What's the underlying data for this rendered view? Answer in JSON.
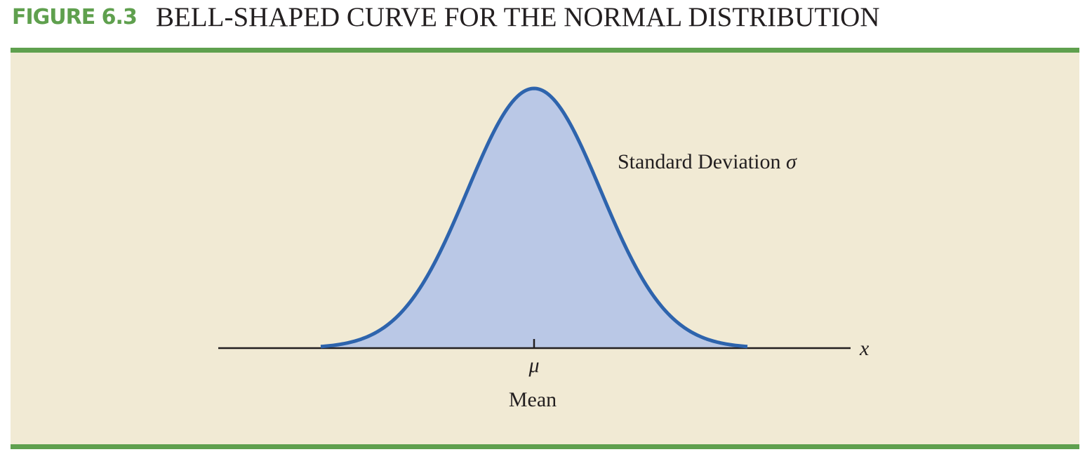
{
  "figure": {
    "label": "FIGURE 6.3",
    "title": "BELL-SHAPED CURVE FOR THE NORMAL DISTRIBUTION"
  },
  "colors": {
    "accent_green": "#5fa04e",
    "panel_background": "#f1ead4",
    "curve_stroke": "#2e64ad",
    "curve_fill": "#bac8e6",
    "axis": "#231f20"
  },
  "chart_data": {
    "type": "area",
    "distribution": "normal",
    "mean": 0,
    "std_dev": 1,
    "x_range": [
      -3.2,
      3.2
    ],
    "grid": false,
    "axis_label": "x",
    "mean_tick_label": "μ",
    "mean_caption": "Mean",
    "annotation": "Standard Deviation σ"
  }
}
